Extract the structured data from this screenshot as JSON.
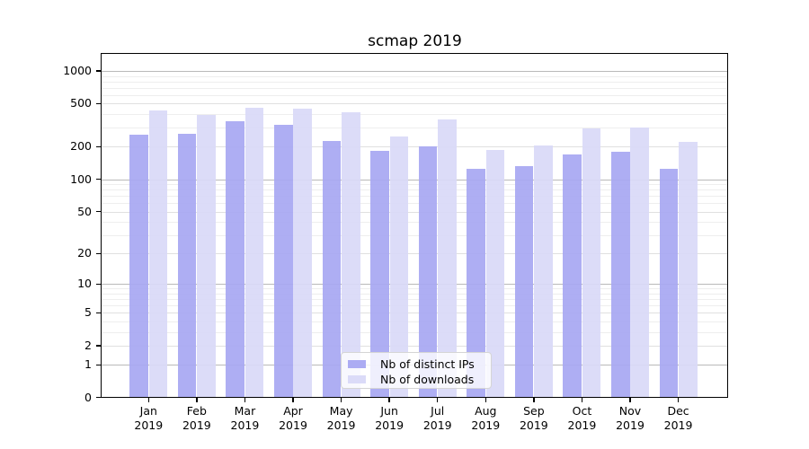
{
  "chart_data": {
    "type": "bar",
    "title": "scmap 2019",
    "categories": [
      "Jan 2019",
      "Feb 2019",
      "Mar 2019",
      "Apr 2019",
      "May 2019",
      "Jun 2019",
      "Jul 2019",
      "Aug 2019",
      "Sep 2019",
      "Oct 2019",
      "Nov 2019",
      "Dec 2019"
    ],
    "series": [
      {
        "name": "Nb of distinct IPs",
        "color": "#a8a8f2",
        "values": [
          260,
          265,
          343,
          320,
          228,
          183,
          201,
          125,
          133,
          171,
          180,
          125
        ]
      },
      {
        "name": "Nb of downloads",
        "color": "#d9d9f8",
        "values": [
          430,
          394,
          460,
          453,
          417,
          251,
          356,
          186,
          205,
          295,
          300,
          220
        ]
      }
    ],
    "xlabel": "",
    "ylabel": "",
    "y_scale": "log1p",
    "ylim": [
      0,
      1434
    ],
    "y_major_ticks": [
      0,
      1,
      2,
      5,
      10,
      20,
      50,
      100,
      200,
      500,
      1000
    ],
    "y_minor_ticks": [
      3,
      4,
      6,
      7,
      8,
      9,
      30,
      40,
      60,
      70,
      80,
      90,
      300,
      400,
      600,
      700,
      800,
      900
    ],
    "y_emphasized_gridlines": [
      1,
      10,
      100,
      1000
    ],
    "grid": "horizontal",
    "legend": {
      "position": "lower center",
      "entries": [
        "Nb of distinct IPs",
        "Nb of downloads"
      ]
    }
  }
}
